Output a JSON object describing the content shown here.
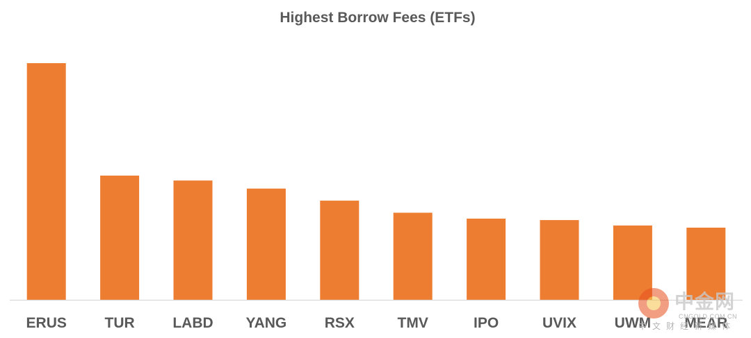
{
  "chart_data": {
    "type": "bar",
    "title": "Highest Borrow Fees (ETFs)",
    "xlabel": "",
    "ylabel": "",
    "categories": [
      "ERUS",
      "TUR",
      "LABD",
      "YANG",
      "RSX",
      "TMV",
      "IPO",
      "UVIX",
      "UWM",
      "MEAR"
    ],
    "values": [
      100,
      52.5,
      50.4,
      47.0,
      41.9,
      36.8,
      34.3,
      33.7,
      31.4,
      30.5
    ],
    "ylim": [
      0,
      100
    ],
    "grid": false,
    "legend": "none",
    "bar_color": "#ED7D31",
    "axis_color": "#D9D9D9",
    "text_color": "#595959"
  },
  "watermark": {
    "name": "中金网",
    "url": "CNGOLD.COM.CN",
    "tagline": "中文财经新媒体"
  }
}
